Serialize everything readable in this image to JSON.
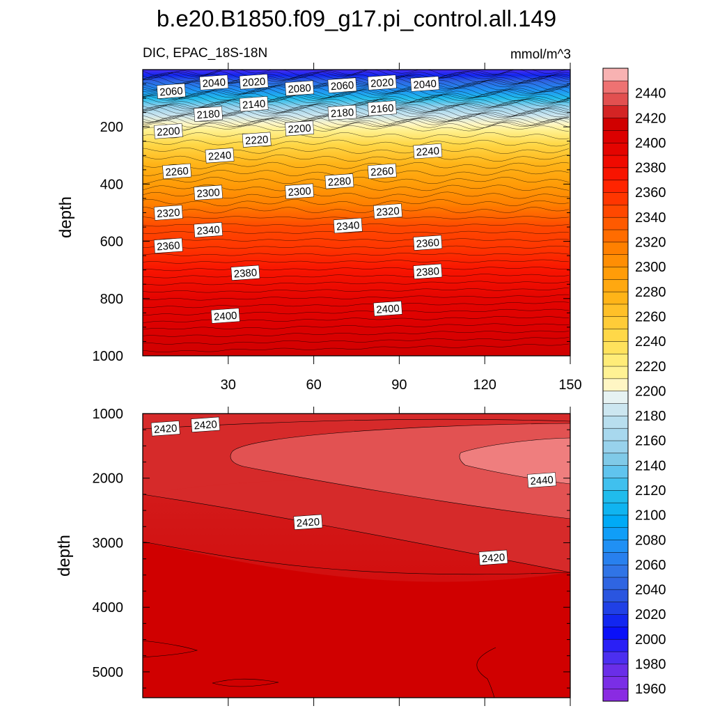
{
  "chart_data": {
    "type": "contour",
    "title": "b.e20.B1850.f09_g17.pi_control.all.149",
    "subtitle_left": "DIC, EPAC_18S-18N",
    "units": "mmol/m^3",
    "x_range": [
      0,
      150
    ],
    "x_ticks": [
      30,
      60,
      90,
      120,
      150
    ],
    "panels": [
      {
        "name": "upper",
        "ylabel": "depth",
        "ylim": [
          0,
          1000
        ],
        "yticks": [
          200,
          400,
          600,
          800,
          1000
        ],
        "contour_labels": [
          {
            "text": "2060",
            "x": 10,
            "y": 75
          },
          {
            "text": "2040",
            "x": 25,
            "y": 45
          },
          {
            "text": "2020",
            "x": 39,
            "y": 42
          },
          {
            "text": "2080",
            "x": 55,
            "y": 65
          },
          {
            "text": "2060",
            "x": 70,
            "y": 55
          },
          {
            "text": "2020",
            "x": 84,
            "y": 45
          },
          {
            "text": "2040",
            "x": 99,
            "y": 50
          },
          {
            "text": "2140",
            "x": 39,
            "y": 120
          },
          {
            "text": "2160",
            "x": 84,
            "y": 135
          },
          {
            "text": "2180",
            "x": 23,
            "y": 155
          },
          {
            "text": "2180",
            "x": 70,
            "y": 150
          },
          {
            "text": "2200",
            "x": 9,
            "y": 215
          },
          {
            "text": "2200",
            "x": 55,
            "y": 205
          },
          {
            "text": "2220",
            "x": 40,
            "y": 245
          },
          {
            "text": "2240",
            "x": 27,
            "y": 300
          },
          {
            "text": "2240",
            "x": 100,
            "y": 285
          },
          {
            "text": "2260",
            "x": 12,
            "y": 355
          },
          {
            "text": "2260",
            "x": 84,
            "y": 355
          },
          {
            "text": "2280",
            "x": 69,
            "y": 390
          },
          {
            "text": "2300",
            "x": 23,
            "y": 430
          },
          {
            "text": "2300",
            "x": 55,
            "y": 425
          },
          {
            "text": "2320",
            "x": 9,
            "y": 500
          },
          {
            "text": "2320",
            "x": 86,
            "y": 495
          },
          {
            "text": "2340",
            "x": 23,
            "y": 560
          },
          {
            "text": "2340",
            "x": 72,
            "y": 545
          },
          {
            "text": "2360",
            "x": 9,
            "y": 615
          },
          {
            "text": "2360",
            "x": 100,
            "y": 605
          },
          {
            "text": "2380",
            "x": 36,
            "y": 710
          },
          {
            "text": "2380",
            "x": 100,
            "y": 705
          },
          {
            "text": "2400",
            "x": 29,
            "y": 860
          },
          {
            "text": "2400",
            "x": 86,
            "y": 835
          }
        ]
      },
      {
        "name": "lower",
        "ylabel": "depth",
        "ylim": [
          1000,
          5400
        ],
        "yticks": [
          1000,
          2000,
          3000,
          4000,
          5000
        ],
        "contour_labels": [
          {
            "text": "2420",
            "x": 8,
            "y": 1230
          },
          {
            "text": "2420",
            "x": 22,
            "y": 1170
          },
          {
            "text": "2440",
            "x": 140,
            "y": 2030
          },
          {
            "text": "2420",
            "x": 58,
            "y": 2680
          },
          {
            "text": "2420",
            "x": 123,
            "y": 3230
          }
        ]
      }
    ],
    "colorbar": {
      "levels": [
        1950,
        1960,
        1970,
        1980,
        1990,
        2000,
        2010,
        2020,
        2030,
        2040,
        2050,
        2060,
        2070,
        2080,
        2090,
        2100,
        2110,
        2120,
        2130,
        2140,
        2150,
        2160,
        2170,
        2180,
        2190,
        2200,
        2210,
        2220,
        2230,
        2240,
        2250,
        2260,
        2270,
        2280,
        2290,
        2300,
        2310,
        2320,
        2330,
        2340,
        2350,
        2360,
        2370,
        2380,
        2390,
        2400,
        2410,
        2420,
        2430,
        2440,
        2450,
        2460
      ],
      "tick_labels": [
        "1960",
        "1980",
        "2000",
        "2020",
        "2040",
        "2060",
        "2080",
        "2100",
        "2120",
        "2140",
        "2160",
        "2180",
        "2200",
        "2220",
        "2240",
        "2260",
        "2280",
        "2300",
        "2320",
        "2340",
        "2360",
        "2380",
        "2400",
        "2420",
        "2440"
      ],
      "colors": [
        "#8a2be2",
        "#7a2ee6",
        "#6a2ee8",
        "#4c2ff0",
        "#2a20f6",
        "#0a10f8",
        "#1226f0",
        "#2040e6",
        "#2a55e0",
        "#2f65e2",
        "#3074e6",
        "#2880ee",
        "#2090f4",
        "#109ef8",
        "#00aaf6",
        "#10b4f0",
        "#20bcec",
        "#40c0ee",
        "#60c4ee",
        "#80cae8",
        "#98d2ec",
        "#a8d8ee",
        "#b8deee",
        "#cce6f0",
        "#e6f2f2",
        "#fff6c4",
        "#fff294",
        "#ffec78",
        "#ffe25c",
        "#ffd848",
        "#ffcc38",
        "#ffc028",
        "#ffb418",
        "#ffa810",
        "#ff9c08",
        "#ff8e04",
        "#ff8000",
        "#ff6c00",
        "#ff5a00",
        "#ff4800",
        "#ff3600",
        "#ff2400",
        "#f81400",
        "#f00a00",
        "#e40400",
        "#dc0000",
        "#d00000",
        "#d42424",
        "#e25050",
        "#ee7272",
        "#f8b2b2"
      ]
    }
  }
}
